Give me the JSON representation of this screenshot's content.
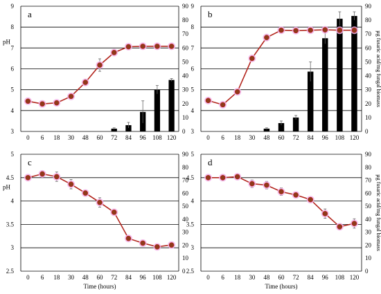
{
  "colors": {
    "line": "#b3261e",
    "marker_fill": "#8e3a1a",
    "marker_halo": "#f2b5ea",
    "bar": "#000000",
    "grid": "#000000",
    "error_bar": "#666666"
  },
  "chart_data": [
    {
      "id": "a",
      "type": "bar+line",
      "panel_label": "a",
      "categories": [
        "0",
        "6",
        "18",
        "30",
        "48",
        "60",
        "72",
        "84",
        "96",
        "108",
        "120"
      ],
      "left_axis": {
        "label": "pH",
        "ylim": [
          3,
          9
        ],
        "ticks": [
          "3",
          "4",
          "5",
          "6",
          "7",
          "8",
          "9"
        ]
      },
      "right_axis": {
        "label": "",
        "ylim": [
          0,
          90
        ],
        "ticks": [
          "0",
          "10",
          "20",
          "30",
          "40",
          "50",
          "60",
          "70",
          "80",
          "90"
        ]
      },
      "xlabel": "",
      "series": [
        {
          "type": "line",
          "axis": "left",
          "values": [
            4.45,
            4.32,
            4.37,
            4.68,
            5.35,
            6.18,
            6.78,
            7.06,
            7.08,
            7.08,
            7.08
          ],
          "errors": [
            0.05,
            0.05,
            0.06,
            0.08,
            0.15,
            0.3,
            0.12,
            0.05,
            0.05,
            0.05,
            0.05
          ]
        },
        {
          "type": "bar",
          "axis": "right",
          "values": [
            0,
            0,
            0,
            0,
            0,
            0,
            2,
            4.5,
            14,
            30,
            37
          ],
          "errors": [
            0,
            0,
            0,
            0,
            0,
            0,
            0.6,
            2,
            8,
            3,
            1
          ]
        }
      ]
    },
    {
      "id": "b",
      "type": "bar+line",
      "panel_label": "b",
      "categories": [
        "0",
        "6",
        "18",
        "30",
        "48",
        "60",
        "72",
        "84",
        "96",
        "108",
        "120"
      ],
      "left_axis": {
        "label": "",
        "ylim": [
          3,
          9
        ],
        "ticks": [
          "3",
          "4",
          "5",
          "6",
          "7",
          "8",
          "9"
        ]
      },
      "right_axis": {
        "label": "µg fusaric acid/mg fungal biomass",
        "ylim": [
          0,
          90
        ],
        "ticks": [
          "0",
          "10",
          "20",
          "30",
          "40",
          "50",
          "60",
          "70",
          "80",
          "90"
        ]
      },
      "xlabel": "",
      "series": [
        {
          "type": "line",
          "axis": "left",
          "values": [
            4.48,
            4.28,
            4.9,
            6.5,
            7.5,
            7.85,
            7.83,
            7.85,
            7.87,
            7.85,
            7.85
          ],
          "errors": [
            0.05,
            0.1,
            0.08,
            0.1,
            0.15,
            0.05,
            0.05,
            0.05,
            0.1,
            0.1,
            0.1
          ]
        },
        {
          "type": "bar",
          "axis": "right",
          "values": [
            0,
            0,
            0,
            0,
            2,
            6,
            10,
            43,
            67,
            81,
            83
          ],
          "errors": [
            0,
            0,
            0,
            0,
            0.6,
            1.5,
            1.5,
            7,
            4,
            5,
            3
          ]
        }
      ]
    },
    {
      "id": "c",
      "type": "line",
      "panel_label": "c",
      "categories": [
        "0",
        "6",
        "18",
        "30",
        "48",
        "60",
        "72",
        "84",
        "96",
        "108",
        "120"
      ],
      "left_axis": {
        "label": "pH",
        "ylim": [
          2.5,
          5
        ],
        "ticks": [
          "2.5",
          "3",
          "3.5",
          "4",
          "4.5",
          "5"
        ]
      },
      "right_axis": {
        "label": "",
        "ylim": [
          0,
          90
        ],
        "ticks": [
          "0",
          "10",
          "20",
          "30",
          "40",
          "50",
          "60",
          "70",
          "80",
          "90"
        ]
      },
      "xlabel": "Time (hours)",
      "series": [
        {
          "type": "line",
          "axis": "left",
          "values": [
            4.5,
            4.58,
            4.52,
            4.36,
            4.17,
            3.97,
            3.76,
            3.2,
            3.1,
            3.02,
            3.06
          ],
          "errors": [
            0.03,
            0.06,
            0.1,
            0.1,
            0.06,
            0.1,
            0.05,
            0.05,
            0.04,
            0.03,
            0.03
          ]
        }
      ]
    },
    {
      "id": "d",
      "type": "line",
      "panel_label": "d",
      "categories": [
        "0",
        "6",
        "18",
        "30",
        "48",
        "60",
        "72",
        "84",
        "96",
        "108",
        "120"
      ],
      "left_axis": {
        "label": "",
        "ylim": [
          2.5,
          5
        ],
        "ticks": [
          "2.5",
          "3",
          "3.5",
          "4",
          "4.5",
          "5"
        ]
      },
      "right_axis": {
        "label": "µg fusaric acid/mg fungal biomass",
        "ylim": [
          0,
          90
        ],
        "ticks": [
          "0",
          "10",
          "20",
          "30",
          "40",
          "50",
          "60",
          "70",
          "80",
          "90"
        ]
      },
      "xlabel": "Time (hours)",
      "series": [
        {
          "type": "line",
          "axis": "left",
          "values": [
            4.5,
            4.5,
            4.52,
            4.37,
            4.34,
            4.2,
            4.13,
            4.03,
            3.73,
            3.45,
            3.52
          ],
          "errors": [
            0.03,
            0.06,
            0.04,
            0.08,
            0.08,
            0.08,
            0.05,
            0.04,
            0.1,
            0.06,
            0.1
          ]
        }
      ]
    }
  ]
}
